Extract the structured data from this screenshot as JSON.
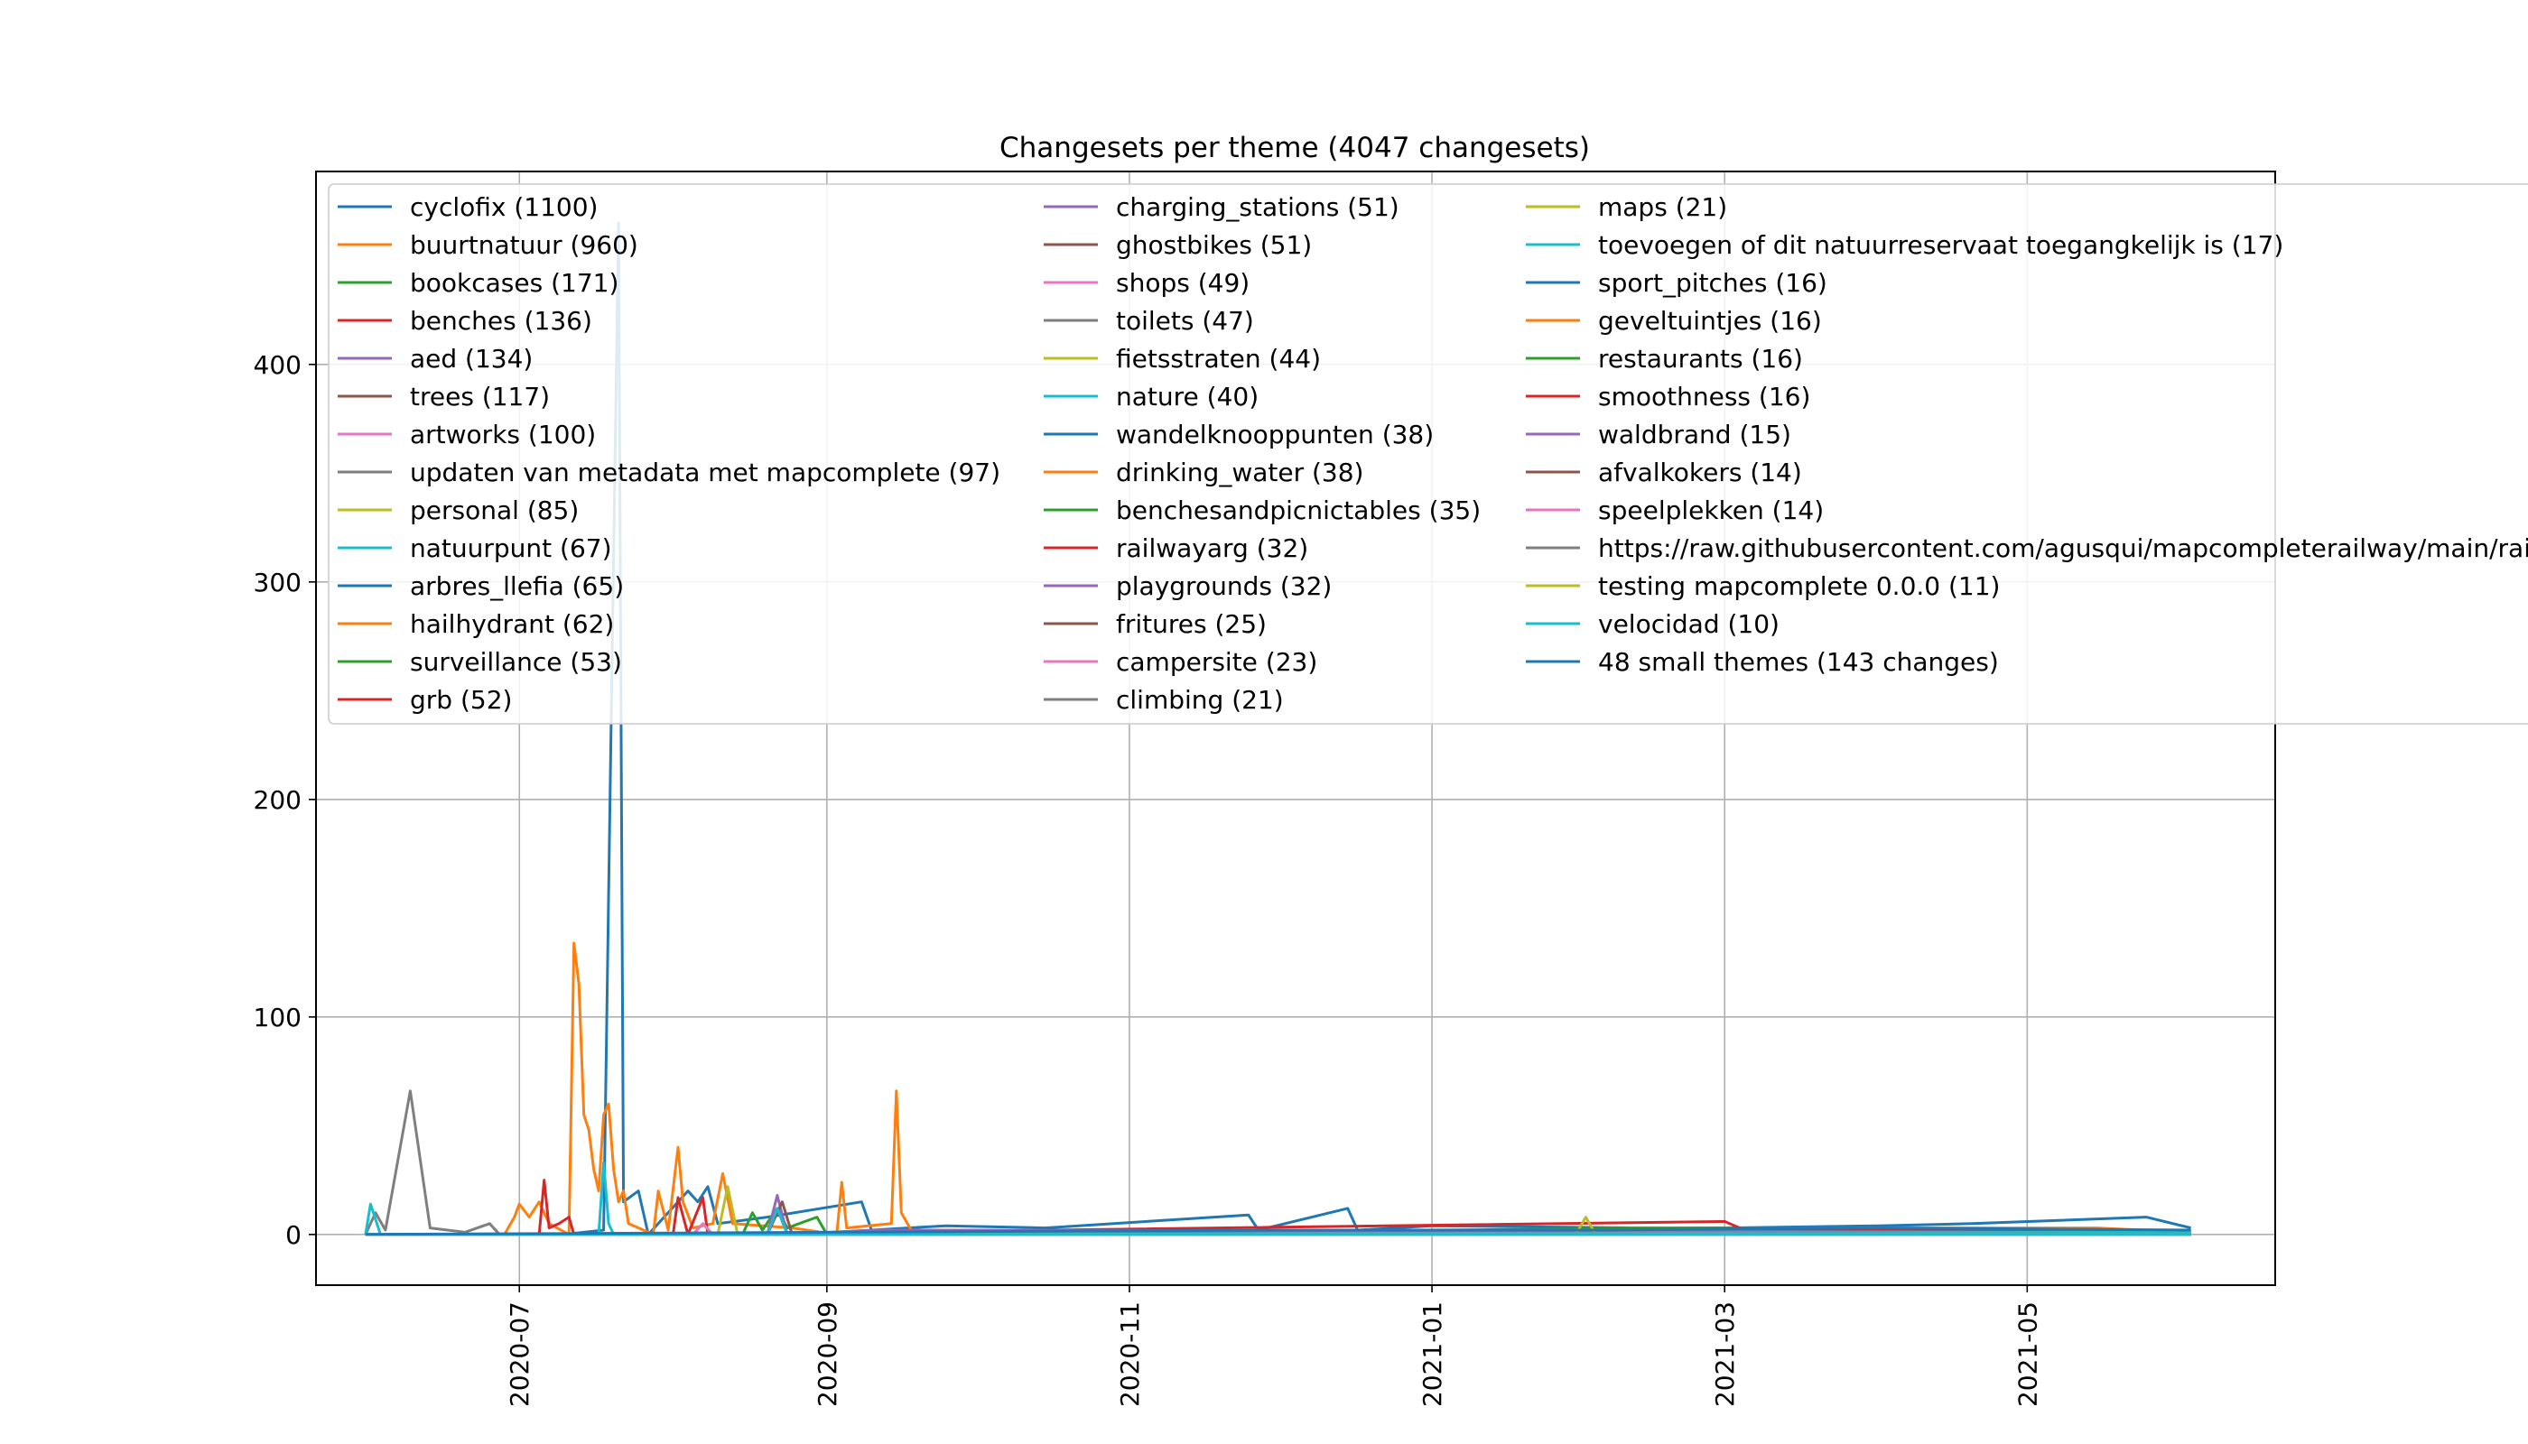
{
  "chart_data": {
    "type": "line",
    "title": "Changesets per theme (4047 changesets)",
    "xlabel": "",
    "ylabel": "",
    "xlim": [
      "2020-05-21",
      "2021-06-20"
    ],
    "ylim": [
      -23.3,
      488.7
    ],
    "x_ticks": [
      "2020-07",
      "2020-09",
      "2020-11",
      "2021-01",
      "2021-03",
      "2021-05"
    ],
    "y_ticks": [
      0,
      100,
      200,
      300,
      400
    ],
    "grid": true,
    "legend_position": "top-left",
    "legend_columns": 3,
    "series": [
      {
        "name": "cyclofix (1100)",
        "color": "#1f77b4",
        "points": [
          [
            "2020-05-31",
            0
          ],
          [
            "2020-07-10",
            0
          ],
          [
            "2020-07-18",
            2
          ],
          [
            "2020-07-21",
            465
          ],
          [
            "2020-07-22",
            15
          ],
          [
            "2020-07-25",
            20
          ],
          [
            "2020-07-27",
            0
          ],
          [
            "2020-08-04",
            20
          ],
          [
            "2020-08-06",
            15
          ],
          [
            "2020-08-08",
            22
          ],
          [
            "2020-08-10",
            5
          ],
          [
            "2020-08-20",
            8
          ],
          [
            "2020-09-08",
            15
          ],
          [
            "2020-09-10",
            2
          ],
          [
            "2020-09-25",
            4
          ],
          [
            "2020-10-15",
            3
          ],
          [
            "2020-11-25",
            9
          ],
          [
            "2020-11-27",
            2
          ],
          [
            "2020-12-15",
            12
          ],
          [
            "2020-12-17",
            2
          ],
          [
            "2021-01-01",
            4
          ],
          [
            "2021-02-10",
            3
          ],
          [
            "2021-03-01",
            3
          ],
          [
            "2021-04-01",
            4
          ],
          [
            "2021-04-20",
            5
          ],
          [
            "2021-05-25",
            8
          ],
          [
            "2021-06-03",
            3
          ]
        ]
      },
      {
        "name": "buurtnatuur (960)",
        "color": "#ff7f0e",
        "points": [
          [
            "2020-05-31",
            0
          ],
          [
            "2020-06-28",
            0
          ],
          [
            "2020-06-30",
            8
          ],
          [
            "2020-07-01",
            14
          ],
          [
            "2020-07-03",
            8
          ],
          [
            "2020-07-05",
            15
          ],
          [
            "2020-07-07",
            5
          ],
          [
            "2020-07-11",
            0
          ],
          [
            "2020-07-12",
            134
          ],
          [
            "2020-07-13",
            115
          ],
          [
            "2020-07-14",
            55
          ],
          [
            "2020-07-15",
            48
          ],
          [
            "2020-07-16",
            30
          ],
          [
            "2020-07-17",
            20
          ],
          [
            "2020-07-18",
            55
          ],
          [
            "2020-07-19",
            60
          ],
          [
            "2020-07-20",
            30
          ],
          [
            "2020-07-21",
            15
          ],
          [
            "2020-07-22",
            20
          ],
          [
            "2020-07-23",
            5
          ],
          [
            "2020-07-28",
            0
          ],
          [
            "2020-07-29",
            20
          ],
          [
            "2020-07-31",
            2
          ],
          [
            "2020-08-02",
            40
          ],
          [
            "2020-08-03",
            15
          ],
          [
            "2020-08-05",
            3
          ],
          [
            "2020-08-09",
            5
          ],
          [
            "2020-08-11",
            28
          ],
          [
            "2020-08-13",
            5
          ],
          [
            "2020-08-25",
            3
          ],
          [
            "2020-09-03",
            0
          ],
          [
            "2020-09-04",
            24
          ],
          [
            "2020-09-05",
            3
          ],
          [
            "2020-09-14",
            5
          ],
          [
            "2020-09-15",
            66
          ],
          [
            "2020-09-16",
            10
          ],
          [
            "2020-09-18",
            2
          ],
          [
            "2020-10-01",
            2
          ],
          [
            "2020-11-01",
            1
          ],
          [
            "2021-01-15",
            2
          ],
          [
            "2021-04-01",
            3
          ],
          [
            "2021-05-15",
            3
          ],
          [
            "2021-06-03",
            1
          ]
        ]
      },
      {
        "name": "bookcases (171)",
        "color": "#2ca02c",
        "points": [
          [
            "2020-05-31",
            0
          ],
          [
            "2020-08-15",
            0
          ],
          [
            "2020-08-17",
            10
          ],
          [
            "2020-08-19",
            2
          ],
          [
            "2020-08-22",
            12
          ],
          [
            "2020-08-24",
            3
          ],
          [
            "2020-08-30",
            8
          ],
          [
            "2020-09-01",
            0
          ],
          [
            "2021-03-01",
            3
          ],
          [
            "2021-06-03",
            1
          ]
        ]
      },
      {
        "name": "benches (136)",
        "color": "#d62728",
        "points": [
          [
            "2020-05-31",
            0
          ],
          [
            "2020-07-05",
            0
          ],
          [
            "2020-07-06",
            25
          ],
          [
            "2020-07-07",
            3
          ],
          [
            "2020-07-09",
            5
          ],
          [
            "2020-07-11",
            8
          ],
          [
            "2020-07-12",
            0
          ],
          [
            "2020-08-01",
            0
          ],
          [
            "2020-08-02",
            17
          ],
          [
            "2020-08-04",
            0
          ],
          [
            "2020-08-07",
            17
          ],
          [
            "2020-08-08",
            0
          ],
          [
            "2021-03-01",
            6
          ],
          [
            "2021-03-05",
            2
          ],
          [
            "2021-06-03",
            2
          ]
        ]
      },
      {
        "name": "aed (134)",
        "color": "#9467bd",
        "points": [
          [
            "2020-05-31",
            0
          ],
          [
            "2020-08-20",
            0
          ],
          [
            "2020-08-22",
            18
          ],
          [
            "2020-08-24",
            0
          ],
          [
            "2020-09-10",
            2
          ],
          [
            "2021-06-03",
            1
          ]
        ]
      },
      {
        "name": "trees (117)",
        "color": "#8c564b",
        "points": [
          [
            "2020-05-31",
            0
          ],
          [
            "2020-08-20",
            0
          ],
          [
            "2020-08-23",
            15
          ],
          [
            "2020-08-25",
            0
          ],
          [
            "2021-06-03",
            1
          ]
        ]
      },
      {
        "name": "artworks (100)",
        "color": "#e377c2",
        "points": [
          [
            "2020-05-31",
            0
          ],
          [
            "2020-08-05",
            0
          ],
          [
            "2020-08-07",
            5
          ],
          [
            "2020-08-09",
            0
          ],
          [
            "2021-06-03",
            1
          ]
        ]
      },
      {
        "name": "updaten van metadata met mapcomplete (97)",
        "color": "#7f7f7f",
        "points": [
          [
            "2020-05-31",
            0
          ],
          [
            "2020-06-02",
            10
          ],
          [
            "2020-06-04",
            2
          ],
          [
            "2020-06-09",
            66
          ],
          [
            "2020-06-13",
            3
          ],
          [
            "2020-06-20",
            1
          ],
          [
            "2020-06-25",
            5
          ],
          [
            "2020-06-27",
            0
          ],
          [
            "2021-06-03",
            0
          ]
        ]
      },
      {
        "name": "personal (85)",
        "color": "#bcbd22",
        "points": [
          [
            "2020-05-31",
            0
          ],
          [
            "2020-08-10",
            0
          ],
          [
            "2020-08-12",
            22
          ],
          [
            "2020-08-14",
            0
          ],
          [
            "2021-01-30",
            0
          ],
          [
            "2021-02-01",
            8
          ],
          [
            "2021-02-03",
            0
          ],
          [
            "2021-06-03",
            1
          ]
        ]
      },
      {
        "name": "natuurpunt (67)",
        "color": "#17becf",
        "points": [
          [
            "2020-05-31",
            0
          ],
          [
            "2020-06-01",
            14
          ],
          [
            "2020-06-03",
            0
          ],
          [
            "2020-07-17",
            0
          ],
          [
            "2020-07-18",
            33
          ],
          [
            "2020-07-19",
            5
          ],
          [
            "2020-07-20",
            0
          ],
          [
            "2020-08-20",
            0
          ],
          [
            "2020-08-22",
            12
          ],
          [
            "2020-08-24",
            0
          ],
          [
            "2021-06-03",
            1
          ]
        ]
      },
      {
        "name": "arbres_llefia (65)",
        "color": "#1f77b4",
        "points": [
          [
            "2020-05-31",
            0
          ],
          [
            "2021-06-03",
            0
          ]
        ]
      },
      {
        "name": "hailhydrant (62)",
        "color": "#ff7f0e",
        "points": [
          [
            "2020-05-31",
            0
          ],
          [
            "2021-06-03",
            0
          ]
        ]
      },
      {
        "name": "surveillance (53)",
        "color": "#2ca02c",
        "points": [
          [
            "2020-05-31",
            0
          ],
          [
            "2021-06-03",
            0
          ]
        ]
      },
      {
        "name": "grb (52)",
        "color": "#d62728",
        "points": [
          [
            "2020-05-31",
            0
          ],
          [
            "2021-06-03",
            0
          ]
        ]
      },
      {
        "name": "charging_stations (51)",
        "color": "#9467bd",
        "points": [
          [
            "2020-05-31",
            0
          ],
          [
            "2021-06-03",
            0
          ]
        ]
      },
      {
        "name": "ghostbikes (51)",
        "color": "#8c564b",
        "points": [
          [
            "2020-05-31",
            0
          ],
          [
            "2021-06-03",
            0
          ]
        ]
      },
      {
        "name": "shops (49)",
        "color": "#e377c2",
        "points": [
          [
            "2020-05-31",
            0
          ],
          [
            "2021-06-03",
            0
          ]
        ]
      },
      {
        "name": "toilets (47)",
        "color": "#7f7f7f",
        "points": [
          [
            "2020-05-31",
            0
          ],
          [
            "2021-06-03",
            0
          ]
        ]
      },
      {
        "name": "fietsstraten (44)",
        "color": "#bcbd22",
        "points": [
          [
            "2020-05-31",
            0
          ],
          [
            "2021-06-03",
            0
          ]
        ]
      },
      {
        "name": "nature (40)",
        "color": "#17becf",
        "points": [
          [
            "2020-05-31",
            0
          ],
          [
            "2021-06-03",
            0
          ]
        ]
      },
      {
        "name": "wandelknooppunten (38)",
        "color": "#1f77b4",
        "points": [
          [
            "2020-05-31",
            0
          ],
          [
            "2021-06-03",
            0
          ]
        ]
      },
      {
        "name": "drinking_water (38)",
        "color": "#ff7f0e",
        "points": [
          [
            "2020-05-31",
            0
          ],
          [
            "2021-06-03",
            0
          ]
        ]
      },
      {
        "name": "benchesandpicnictables (35)",
        "color": "#2ca02c",
        "points": [
          [
            "2020-05-31",
            0
          ],
          [
            "2021-06-03",
            0
          ]
        ]
      },
      {
        "name": "railwayarg (32)",
        "color": "#d62728",
        "points": [
          [
            "2020-05-31",
            0
          ],
          [
            "2021-06-03",
            0
          ]
        ]
      },
      {
        "name": "playgrounds (32)",
        "color": "#9467bd",
        "points": [
          [
            "2020-05-31",
            0
          ],
          [
            "2021-06-03",
            0
          ]
        ]
      },
      {
        "name": "fritures (25)",
        "color": "#8c564b",
        "points": [
          [
            "2020-05-31",
            0
          ],
          [
            "2021-06-03",
            0
          ]
        ]
      },
      {
        "name": "campersite (23)",
        "color": "#e377c2",
        "points": [
          [
            "2020-05-31",
            0
          ],
          [
            "2021-06-03",
            0
          ]
        ]
      },
      {
        "name": "climbing (21)",
        "color": "#7f7f7f",
        "points": [
          [
            "2020-05-31",
            0
          ],
          [
            "2021-06-03",
            0
          ]
        ]
      },
      {
        "name": "maps (21)",
        "color": "#bcbd22",
        "points": [
          [
            "2020-05-31",
            0
          ],
          [
            "2021-06-03",
            0
          ]
        ]
      },
      {
        "name": "toevoegen of dit natuurreservaat toegangkelijk is (17)",
        "color": "#17becf",
        "points": [
          [
            "2020-05-31",
            0
          ],
          [
            "2021-06-03",
            0
          ]
        ]
      },
      {
        "name": "sport_pitches (16)",
        "color": "#1f77b4",
        "points": [
          [
            "2020-05-31",
            0
          ],
          [
            "2021-06-03",
            0
          ]
        ]
      },
      {
        "name": "geveltuintjes (16)",
        "color": "#ff7f0e",
        "points": [
          [
            "2020-05-31",
            0
          ],
          [
            "2021-06-03",
            0
          ]
        ]
      },
      {
        "name": "restaurants (16)",
        "color": "#2ca02c",
        "points": [
          [
            "2020-05-31",
            0
          ],
          [
            "2021-06-03",
            0
          ]
        ]
      },
      {
        "name": "smoothness (16)",
        "color": "#d62728",
        "points": [
          [
            "2020-05-31",
            0
          ],
          [
            "2021-06-03",
            0
          ]
        ]
      },
      {
        "name": "waldbrand (15)",
        "color": "#9467bd",
        "points": [
          [
            "2020-05-31",
            0
          ],
          [
            "2021-06-03",
            0
          ]
        ]
      },
      {
        "name": "afvalkokers (14)",
        "color": "#8c564b",
        "points": [
          [
            "2020-05-31",
            0
          ],
          [
            "2021-06-03",
            0
          ]
        ]
      },
      {
        "name": "speelplekken (14)",
        "color": "#e377c2",
        "points": [
          [
            "2020-05-31",
            0
          ],
          [
            "2021-06-03",
            0
          ]
        ]
      },
      {
        "name": "https://raw.githubusercontent.com/agusqui/mapcompleterailway/main/rai",
        "color": "#7f7f7f",
        "points": [
          [
            "2020-05-31",
            0
          ],
          [
            "2021-06-03",
            0
          ]
        ]
      },
      {
        "name": "testing mapcomplete 0.0.0 (11)",
        "color": "#bcbd22",
        "points": [
          [
            "2020-05-31",
            0
          ],
          [
            "2021-06-03",
            0
          ]
        ]
      },
      {
        "name": "velocidad (10)",
        "color": "#17becf",
        "points": [
          [
            "2020-05-31",
            0
          ],
          [
            "2021-06-03",
            0
          ]
        ]
      },
      {
        "name": "48 small themes (143 changes)",
        "color": "#1f77b4",
        "points": [
          [
            "2020-05-31",
            0
          ],
          [
            "2020-12-01",
            2
          ],
          [
            "2021-02-01",
            2
          ],
          [
            "2021-04-01",
            3
          ],
          [
            "2021-06-03",
            2
          ]
        ]
      }
    ]
  }
}
